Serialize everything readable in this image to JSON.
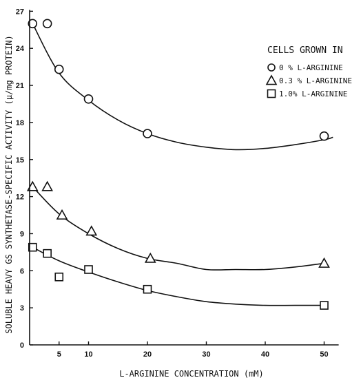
{
  "chart_data": {
    "type": "scatter",
    "title": "",
    "xlabel": "L-ARGININE CONCENTRATION (mM)",
    "ylabel": "SOLUBLE HEAVY GS SYNTHETASE-SPECIFIC ACTIVITY (μ/mg PROTEIN)",
    "xlim": [
      0,
      52
    ],
    "ylim": [
      0,
      27
    ],
    "x_ticks": [
      5,
      10,
      20,
      30,
      40,
      50
    ],
    "y_ticks": [
      0,
      3,
      6,
      9,
      12,
      15,
      18,
      21,
      24,
      27
    ],
    "grid": false,
    "legend": {
      "title": "CELLS GROWN IN",
      "placement": "top-right"
    },
    "series": [
      {
        "name": "0 % L-ARGININE",
        "marker": "circle",
        "points": [
          [
            0.5,
            26.0
          ],
          [
            3.0,
            26.0
          ],
          [
            5.0,
            22.3
          ],
          [
            10.0,
            19.9
          ],
          [
            20.0,
            17.1
          ],
          [
            50.0,
            16.9
          ]
        ],
        "curve": [
          [
            0.5,
            26.0
          ],
          [
            5.0,
            22.0
          ],
          [
            10.0,
            19.8
          ],
          [
            15.0,
            18.2
          ],
          [
            20.0,
            17.1
          ],
          [
            25.0,
            16.4
          ],
          [
            30.0,
            16.0
          ],
          [
            35.0,
            15.8
          ],
          [
            40.0,
            15.9
          ],
          [
            45.0,
            16.2
          ],
          [
            50.0,
            16.6
          ],
          [
            51.5,
            16.8
          ]
        ]
      },
      {
        "name": "0.3 % L-ARGININE",
        "marker": "triangle",
        "points": [
          [
            0.5,
            12.8
          ],
          [
            3.0,
            12.8
          ],
          [
            5.5,
            10.5
          ],
          [
            10.5,
            9.2
          ],
          [
            20.5,
            7.0
          ],
          [
            50.0,
            6.6
          ]
        ],
        "curve": [
          [
            0.5,
            12.8
          ],
          [
            5.0,
            10.6
          ],
          [
            10.0,
            9.0
          ],
          [
            15.0,
            7.8
          ],
          [
            20.0,
            7.0
          ],
          [
            25.0,
            6.6
          ],
          [
            30.0,
            6.1
          ],
          [
            35.0,
            6.1
          ],
          [
            40.0,
            6.1
          ],
          [
            45.0,
            6.3
          ],
          [
            50.0,
            6.6
          ]
        ]
      },
      {
        "name": "1.0% L-ARGININE",
        "marker": "square",
        "points": [
          [
            0.5,
            7.9
          ],
          [
            3.0,
            7.4
          ],
          [
            5.0,
            5.5
          ],
          [
            10.0,
            6.1
          ],
          [
            20.0,
            4.5
          ],
          [
            50.0,
            3.2
          ]
        ],
        "curve": [
          [
            0.5,
            7.9
          ],
          [
            5.0,
            6.8
          ],
          [
            10.0,
            5.9
          ],
          [
            15.0,
            5.1
          ],
          [
            20.0,
            4.4
          ],
          [
            25.0,
            3.9
          ],
          [
            30.0,
            3.5
          ],
          [
            35.0,
            3.3
          ],
          [
            40.0,
            3.2
          ],
          [
            45.0,
            3.2
          ],
          [
            50.0,
            3.2
          ]
        ]
      }
    ]
  }
}
